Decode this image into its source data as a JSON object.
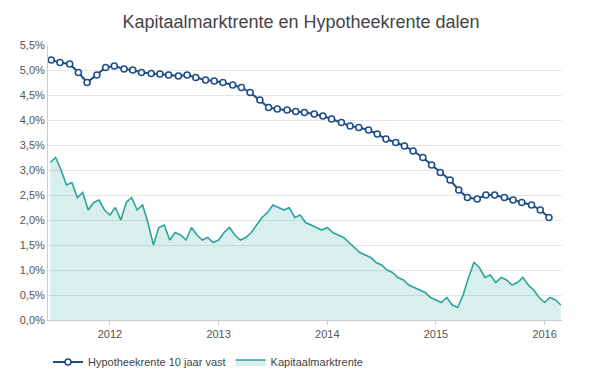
{
  "chart_data": {
    "type": "line",
    "title": "Kapitaalmarktrente en Hypotheekrente dalen",
    "xlim": [
      2011.43,
      2016.16
    ],
    "xticks": [
      2012,
      2013,
      2014,
      2015,
      2016
    ],
    "ylim": [
      0,
      5.5
    ],
    "yticks": [
      {
        "value": 0,
        "label": "0,0%"
      },
      {
        "value": 0.5,
        "label": "0,5%"
      },
      {
        "value": 1,
        "label": "1,0%"
      },
      {
        "value": 1.5,
        "label": "1,5%"
      },
      {
        "value": 2,
        "label": "2,0%"
      },
      {
        "value": 2.5,
        "label": "2,5%"
      },
      {
        "value": 3,
        "label": "3,0%"
      },
      {
        "value": 3.5,
        "label": "3,5%"
      },
      {
        "value": 4,
        "label": "4,0%"
      },
      {
        "value": 4.5,
        "label": "4,5%"
      },
      {
        "value": 5,
        "label": "5,0%"
      },
      {
        "value": 5.5,
        "label": "5,5%"
      }
    ],
    "grid": true,
    "legend": "bottom",
    "series": [
      {
        "name": "Hypotheekrente 10 jaar vast",
        "color": "#1f4e8c",
        "type": "line",
        "marker": "circle",
        "line_style": "solid",
        "x": [
          2011.46,
          2011.54,
          2011.63,
          2011.71,
          2011.79,
          2011.88,
          2011.96,
          2012.04,
          2012.13,
          2012.21,
          2012.29,
          2012.38,
          2012.46,
          2012.54,
          2012.63,
          2012.71,
          2012.79,
          2012.88,
          2012.96,
          2013.04,
          2013.13,
          2013.21,
          2013.29,
          2013.38,
          2013.46,
          2013.54,
          2013.63,
          2013.71,
          2013.79,
          2013.88,
          2013.96,
          2014.04,
          2014.13,
          2014.21,
          2014.29,
          2014.38,
          2014.46,
          2014.54,
          2014.63,
          2014.71,
          2014.79,
          2014.88,
          2014.96,
          2015.04,
          2015.13,
          2015.21,
          2015.29,
          2015.38,
          2015.46,
          2015.54,
          2015.63,
          2015.71,
          2015.79,
          2015.88,
          2015.96,
          2016.04
        ],
        "values": [
          5.2,
          5.15,
          5.12,
          4.95,
          4.75,
          4.9,
          5.05,
          5.08,
          5.02,
          5.0,
          4.95,
          4.93,
          4.92,
          4.9,
          4.88,
          4.9,
          4.85,
          4.8,
          4.78,
          4.75,
          4.7,
          4.65,
          4.55,
          4.4,
          4.25,
          4.22,
          4.2,
          4.17,
          4.15,
          4.12,
          4.08,
          4.02,
          3.95,
          3.88,
          3.85,
          3.8,
          3.72,
          3.62,
          3.55,
          3.48,
          3.38,
          3.25,
          3.1,
          2.95,
          2.8,
          2.6,
          2.45,
          2.42,
          2.5,
          2.5,
          2.45,
          2.4,
          2.35,
          2.3,
          2.2,
          2.05
        ]
      },
      {
        "name": "Kapitaalmarktrente",
        "color": "#2ba59a",
        "type": "area",
        "marker": "none",
        "line_style": "solid",
        "x": [
          2011.45,
          2011.5,
          2011.55,
          2011.6,
          2011.65,
          2011.7,
          2011.75,
          2011.8,
          2011.85,
          2011.9,
          2011.95,
          2012.0,
          2012.05,
          2012.1,
          2012.15,
          2012.2,
          2012.25,
          2012.3,
          2012.35,
          2012.4,
          2012.45,
          2012.5,
          2012.55,
          2012.6,
          2012.65,
          2012.7,
          2012.75,
          2012.8,
          2012.85,
          2012.9,
          2012.95,
          2013.0,
          2013.05,
          2013.1,
          2013.15,
          2013.2,
          2013.25,
          2013.3,
          2013.35,
          2013.4,
          2013.45,
          2013.5,
          2013.55,
          2013.6,
          2013.65,
          2013.7,
          2013.75,
          2013.8,
          2013.85,
          2013.9,
          2013.95,
          2014.0,
          2014.05,
          2014.1,
          2014.15,
          2014.2,
          2014.25,
          2014.3,
          2014.35,
          2014.4,
          2014.45,
          2014.5,
          2014.55,
          2014.6,
          2014.65,
          2014.7,
          2014.75,
          2014.8,
          2014.85,
          2014.9,
          2014.95,
          2015.0,
          2015.05,
          2015.1,
          2015.15,
          2015.2,
          2015.25,
          2015.3,
          2015.35,
          2015.4,
          2015.45,
          2015.5,
          2015.55,
          2015.6,
          2015.65,
          2015.7,
          2015.75,
          2015.8,
          2015.85,
          2015.9,
          2015.95,
          2016.0,
          2016.05,
          2016.1,
          2016.15
        ],
        "values": [
          3.15,
          3.25,
          3.0,
          2.7,
          2.75,
          2.45,
          2.55,
          2.2,
          2.35,
          2.4,
          2.2,
          2.1,
          2.25,
          2.0,
          2.35,
          2.45,
          2.2,
          2.3,
          1.95,
          1.5,
          1.85,
          1.9,
          1.6,
          1.75,
          1.7,
          1.6,
          1.85,
          1.7,
          1.6,
          1.65,
          1.55,
          1.6,
          1.75,
          1.85,
          1.7,
          1.6,
          1.65,
          1.75,
          1.9,
          2.05,
          2.15,
          2.3,
          2.25,
          2.2,
          2.25,
          2.05,
          2.1,
          1.95,
          1.9,
          1.85,
          1.8,
          1.85,
          1.75,
          1.7,
          1.65,
          1.55,
          1.45,
          1.35,
          1.3,
          1.25,
          1.15,
          1.1,
          1.0,
          0.95,
          0.85,
          0.8,
          0.7,
          0.65,
          0.6,
          0.55,
          0.45,
          0.4,
          0.35,
          0.45,
          0.3,
          0.25,
          0.5,
          0.85,
          1.15,
          1.05,
          0.85,
          0.9,
          0.75,
          0.85,
          0.8,
          0.7,
          0.75,
          0.85,
          0.7,
          0.6,
          0.45,
          0.35,
          0.45,
          0.4,
          0.3
        ]
      }
    ]
  }
}
